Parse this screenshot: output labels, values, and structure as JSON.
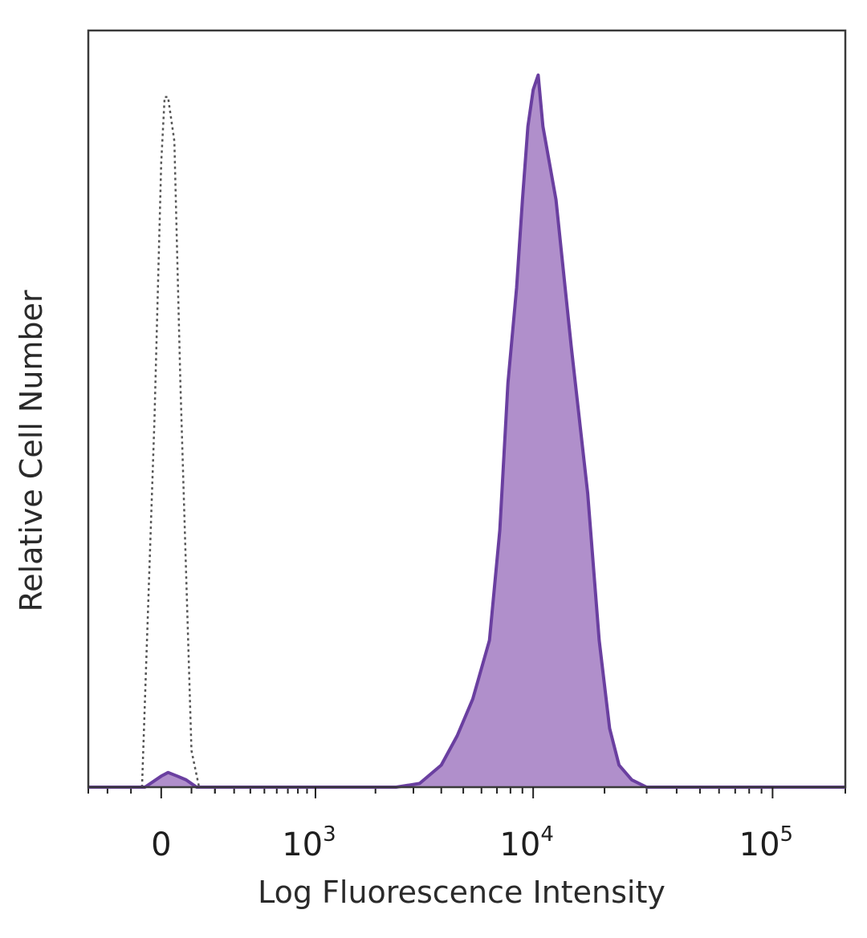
{
  "chart_data": {
    "type": "area",
    "title": "",
    "xlabel": "Log Fluorescence Intensity",
    "ylabel": "Relative Cell Number",
    "x_scale": "biexponential",
    "xlim": [
      -300,
      200000
    ],
    "ylim": [
      0,
      100
    ],
    "grid": false,
    "x_ticks": [
      {
        "value": 0,
        "base": "0",
        "exp": ""
      },
      {
        "value": 1000,
        "base": "10",
        "exp": "3"
      },
      {
        "value": 10000,
        "base": "10",
        "exp": "4"
      },
      {
        "value": 100000,
        "base": "10",
        "exp": "5"
      }
    ],
    "series": [
      {
        "style": "dotted-outline",
        "color": "#555555",
        "x": [
          -60,
          -20,
          0,
          10,
          20,
          40,
          60,
          100,
          130
        ],
        "y": [
          0,
          50,
          85,
          94,
          94,
          88,
          55,
          5,
          0
        ]
      },
      {
        "style": "filled",
        "color": "#6a3fa0",
        "fill": "#b08fcb",
        "x": [
          -300,
          -50,
          0,
          20,
          50,
          80,
          120,
          2500,
          3200,
          4000,
          4700,
          5500,
          6500,
          7200,
          7800,
          8500,
          9000,
          9500,
          10000,
          10500,
          11000,
          12500,
          14500,
          17000,
          19000,
          21000,
          23000,
          26000,
          30000,
          200000
        ],
        "y": [
          0,
          0,
          1.5,
          2,
          1.5,
          1,
          0,
          0,
          0.5,
          3,
          7,
          12,
          20,
          35,
          55,
          68,
          80,
          90,
          95,
          97,
          90,
          80,
          60,
          40,
          20,
          8,
          3,
          1,
          0,
          0
        ]
      }
    ]
  }
}
